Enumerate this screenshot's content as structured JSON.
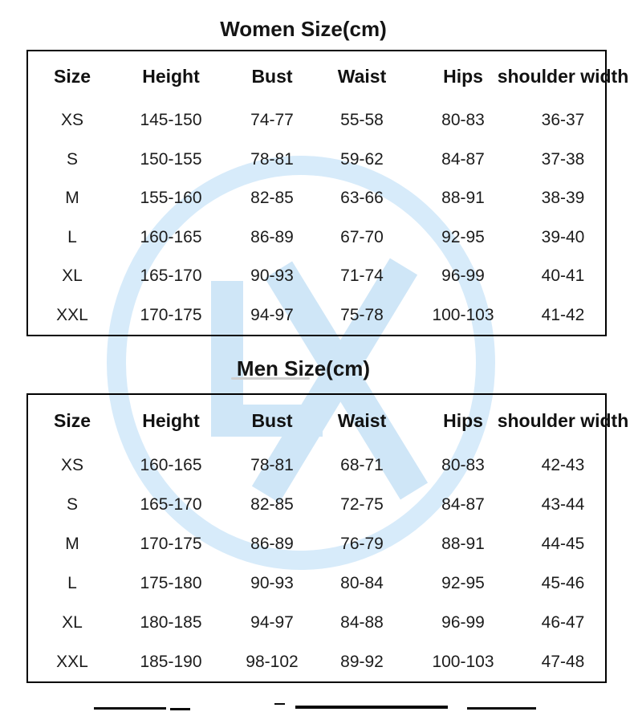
{
  "watermark": {
    "letters": "LX",
    "ring_color": "#d7ebfa",
    "letter_color": "#cfe6f7"
  },
  "women_table": {
    "title": "Women Size(cm)",
    "columns": [
      "Size",
      "Height",
      "Bust",
      "Waist",
      "Hips",
      "shoulder width"
    ],
    "rows": [
      [
        "XS",
        "145-150",
        "74-77",
        "55-58",
        "80-83",
        "36-37"
      ],
      [
        "S",
        "150-155",
        "78-81",
        "59-62",
        "84-87",
        "37-38"
      ],
      [
        "M",
        "155-160",
        "82-85",
        "63-66",
        "88-91",
        "38-39"
      ],
      [
        "L",
        "160-165",
        "86-89",
        "67-70",
        "92-95",
        "39-40"
      ],
      [
        "XL",
        "165-170",
        "90-93",
        "71-74",
        "96-99",
        "40-41"
      ],
      [
        "XXL",
        "170-175",
        "94-97",
        "75-78",
        "100-103",
        "41-42"
      ]
    ]
  },
  "men_table": {
    "title": "Men Size(cm)",
    "columns": [
      "Size",
      "Height",
      "Bust",
      "Waist",
      "Hips",
      "shoulder width"
    ],
    "rows": [
      [
        "XS",
        "160-165",
        "78-81",
        "68-71",
        "80-83",
        "42-43"
      ],
      [
        "S",
        "165-170",
        "82-85",
        "72-75",
        "84-87",
        "43-44"
      ],
      [
        "M",
        "170-175",
        "86-89",
        "76-79",
        "88-91",
        "44-45"
      ],
      [
        "L",
        "175-180",
        "90-93",
        "80-84",
        "92-95",
        "45-46"
      ],
      [
        "XL",
        "180-185",
        "94-97",
        "84-88",
        "96-99",
        "46-47"
      ],
      [
        "XXL",
        "185-190",
        "98-102",
        "89-92",
        "100-103",
        "47-48"
      ]
    ]
  }
}
